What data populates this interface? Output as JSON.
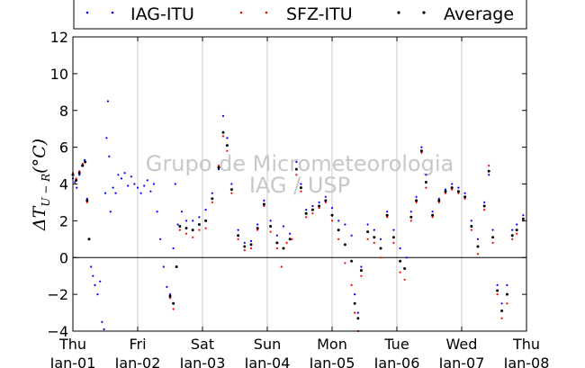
{
  "chart_data": {
    "type": "scatter",
    "title": "",
    "xlabel": "",
    "ylabel": "ΔT_{U-R}(°C)",
    "ylim": [
      -4,
      12
    ],
    "yticks": [
      -4,
      -2,
      0,
      2,
      4,
      6,
      8,
      10,
      12
    ],
    "xlim": [
      0,
      7
    ],
    "xticks": [
      {
        "day": "Thu",
        "date": "Jan-01"
      },
      {
        "day": "Fri",
        "date": "Jan-02"
      },
      {
        "day": "Sat",
        "date": "Jan-03"
      },
      {
        "day": "Sun",
        "date": "Jan-04"
      },
      {
        "day": "Mon",
        "date": "Jan-05"
      },
      {
        "day": "Tue",
        "date": "Jan-06"
      },
      {
        "day": "Wed",
        "date": "Jan-07"
      },
      {
        "day": "Thu",
        "date": "Jan-08"
      }
    ],
    "grid": "vertical",
    "zero_line": true,
    "legend_position": "top",
    "watermark": [
      "Grupo de Micrometeorologia",
      "IAG / USP"
    ],
    "series": [
      {
        "name": "IAG-ITU",
        "color": "#0000ff",
        "points": [
          [
            0.0,
            4.3
          ],
          [
            0.03,
            4.1
          ],
          [
            0.06,
            3.8
          ],
          [
            0.1,
            4.5
          ],
          [
            0.14,
            5.0
          ],
          [
            0.18,
            5.3
          ],
          [
            0.22,
            3.2
          ],
          [
            0.25,
            1.0
          ],
          [
            0.28,
            -0.5
          ],
          [
            0.31,
            -1.0
          ],
          [
            0.34,
            -1.5
          ],
          [
            0.38,
            -2.0
          ],
          [
            0.42,
            -1.3
          ],
          [
            0.45,
            -3.5
          ],
          [
            0.48,
            -3.9
          ],
          [
            0.5,
            3.5
          ],
          [
            0.52,
            6.5
          ],
          [
            0.54,
            8.5
          ],
          [
            0.56,
            5.5
          ],
          [
            0.58,
            2.5
          ],
          [
            0.62,
            3.8
          ],
          [
            0.66,
            3.5
          ],
          [
            0.7,
            4.5
          ],
          [
            0.75,
            4.3
          ],
          [
            0.8,
            4.6
          ],
          [
            0.85,
            3.9
          ],
          [
            0.9,
            4.4
          ],
          [
            0.95,
            4.0
          ],
          [
            1.0,
            3.8
          ],
          [
            1.05,
            3.5
          ],
          [
            1.1,
            3.9
          ],
          [
            1.15,
            4.2
          ],
          [
            1.2,
            3.6
          ],
          [
            1.25,
            4.0
          ],
          [
            1.3,
            2.5
          ],
          [
            1.35,
            1.0
          ],
          [
            1.4,
            -0.5
          ],
          [
            1.45,
            -1.6
          ],
          [
            1.5,
            -2.0
          ],
          [
            1.55,
            0.5
          ],
          [
            1.58,
            4.0
          ],
          [
            1.62,
            1.8
          ],
          [
            1.68,
            2.5
          ],
          [
            1.75,
            2.0
          ],
          [
            1.85,
            2.0
          ],
          [
            1.95,
            2.2
          ],
          [
            2.05,
            2.6
          ],
          [
            2.15,
            3.5
          ],
          [
            2.25,
            4.8
          ],
          [
            2.32,
            7.7
          ],
          [
            2.38,
            6.5
          ],
          [
            2.45,
            4.0
          ],
          [
            2.55,
            1.5
          ],
          [
            2.65,
            0.8
          ],
          [
            2.75,
            0.9
          ],
          [
            2.85,
            1.8
          ],
          [
            2.95,
            3.1
          ],
          [
            3.05,
            2.0
          ],
          [
            3.15,
            1.2
          ],
          [
            3.25,
            1.7
          ],
          [
            3.35,
            1.3
          ],
          [
            3.45,
            5.2
          ],
          [
            3.52,
            4.0
          ],
          [
            3.6,
            2.6
          ],
          [
            3.7,
            2.8
          ],
          [
            3.8,
            3.0
          ],
          [
            3.9,
            3.3
          ],
          [
            4.0,
            2.7
          ],
          [
            4.1,
            2.0
          ],
          [
            4.2,
            1.8
          ],
          [
            4.3,
            1.2
          ],
          [
            4.35,
            -2.0
          ],
          [
            4.4,
            -3.0
          ],
          [
            4.45,
            -0.5
          ],
          [
            4.55,
            1.8
          ],
          [
            4.65,
            1.5
          ],
          [
            4.75,
            1.0
          ],
          [
            4.85,
            2.5
          ],
          [
            4.95,
            1.5
          ],
          [
            5.05,
            0.5
          ],
          [
            5.15,
            0.0
          ],
          [
            5.22,
            2.5
          ],
          [
            5.3,
            3.3
          ],
          [
            5.38,
            6.0
          ],
          [
            5.45,
            4.5
          ],
          [
            5.55,
            2.5
          ],
          [
            5.65,
            3.2
          ],
          [
            5.75,
            3.7
          ],
          [
            5.85,
            4.0
          ],
          [
            5.95,
            3.8
          ],
          [
            6.05,
            3.5
          ],
          [
            6.15,
            2.0
          ],
          [
            6.25,
            1.0
          ],
          [
            6.35,
            3.0
          ],
          [
            6.42,
            4.5
          ],
          [
            6.48,
            1.5
          ],
          [
            6.55,
            -1.5
          ],
          [
            6.62,
            -2.5
          ],
          [
            6.7,
            -1.5
          ],
          [
            6.78,
            1.5
          ],
          [
            6.85,
            1.8
          ],
          [
            6.95,
            2.3
          ]
        ]
      },
      {
        "name": "SFZ-ITU",
        "color": "#ff0000",
        "points": [
          [
            0.0,
            4.6
          ],
          [
            0.05,
            4.3
          ],
          [
            0.1,
            4.7
          ],
          [
            0.15,
            5.1
          ],
          [
            0.19,
            5.2
          ],
          [
            0.22,
            3.0
          ],
          [
            0.25,
            1.0
          ],
          [
            1.5,
            -2.2
          ],
          [
            1.55,
            -2.8
          ],
          [
            1.6,
            -0.5
          ],
          [
            1.65,
            1.5
          ],
          [
            1.75,
            1.3
          ],
          [
            1.85,
            1.1
          ],
          [
            1.95,
            1.5
          ],
          [
            2.05,
            1.6
          ],
          [
            2.15,
            3.0
          ],
          [
            2.25,
            5.0
          ],
          [
            2.32,
            6.6
          ],
          [
            2.38,
            5.8
          ],
          [
            2.45,
            3.5
          ],
          [
            2.55,
            1.0
          ],
          [
            2.65,
            0.4
          ],
          [
            2.75,
            0.5
          ],
          [
            2.85,
            1.5
          ],
          [
            2.95,
            2.8
          ],
          [
            3.05,
            1.4
          ],
          [
            3.15,
            0.5
          ],
          [
            3.22,
            -0.5
          ],
          [
            3.3,
            0.8
          ],
          [
            3.38,
            1.0
          ],
          [
            3.45,
            4.5
          ],
          [
            3.52,
            3.6
          ],
          [
            3.6,
            2.2
          ],
          [
            3.7,
            2.4
          ],
          [
            3.8,
            2.7
          ],
          [
            3.9,
            3.0
          ],
          [
            4.0,
            2.0
          ],
          [
            4.1,
            1.0
          ],
          [
            4.2,
            -0.3
          ],
          [
            4.3,
            -1.5
          ],
          [
            4.35,
            -3.0
          ],
          [
            4.4,
            -4.0
          ],
          [
            4.45,
            -1.0
          ],
          [
            4.55,
            1.0
          ],
          [
            4.65,
            0.8
          ],
          [
            4.75,
            0.0
          ],
          [
            4.85,
            2.2
          ],
          [
            4.95,
            0.8
          ],
          [
            5.05,
            -0.8
          ],
          [
            5.12,
            -1.2
          ],
          [
            5.22,
            2.0
          ],
          [
            5.3,
            3.0
          ],
          [
            5.38,
            5.7
          ],
          [
            5.45,
            3.8
          ],
          [
            5.55,
            2.2
          ],
          [
            5.65,
            3.0
          ],
          [
            5.75,
            3.5
          ],
          [
            5.85,
            3.7
          ],
          [
            5.95,
            3.5
          ],
          [
            6.05,
            3.2
          ],
          [
            6.15,
            1.5
          ],
          [
            6.25,
            0.2
          ],
          [
            6.35,
            2.6
          ],
          [
            6.42,
            5.0
          ],
          [
            6.48,
            0.8
          ],
          [
            6.55,
            -2.0
          ],
          [
            6.62,
            -3.3
          ],
          [
            6.7,
            -2.5
          ],
          [
            6.78,
            1.0
          ],
          [
            6.85,
            1.3
          ],
          [
            6.95,
            2.0
          ]
        ]
      },
      {
        "name": "Average",
        "color": "#000000",
        "points": [
          [
            0.0,
            4.5
          ],
          [
            0.05,
            4.2
          ],
          [
            0.1,
            4.6
          ],
          [
            0.15,
            5.0
          ],
          [
            0.19,
            5.2
          ],
          [
            0.22,
            3.1
          ],
          [
            0.25,
            1.0
          ],
          [
            1.5,
            -2.1
          ],
          [
            1.55,
            -2.5
          ],
          [
            1.6,
            -0.5
          ],
          [
            1.65,
            1.7
          ],
          [
            1.75,
            1.6
          ],
          [
            1.85,
            1.5
          ],
          [
            1.95,
            1.8
          ],
          [
            2.05,
            2.0
          ],
          [
            2.15,
            3.2
          ],
          [
            2.25,
            4.9
          ],
          [
            2.32,
            6.8
          ],
          [
            2.38,
            6.1
          ],
          [
            2.45,
            3.7
          ],
          [
            2.55,
            1.2
          ],
          [
            2.65,
            0.6
          ],
          [
            2.75,
            0.7
          ],
          [
            2.85,
            1.6
          ],
          [
            2.95,
            2.9
          ],
          [
            3.05,
            1.7
          ],
          [
            3.15,
            0.8
          ],
          [
            3.25,
            0.5
          ],
          [
            3.35,
            1.0
          ],
          [
            3.45,
            4.8
          ],
          [
            3.52,
            3.8
          ],
          [
            3.6,
            2.4
          ],
          [
            3.7,
            2.6
          ],
          [
            3.8,
            2.8
          ],
          [
            3.9,
            3.1
          ],
          [
            4.0,
            2.3
          ],
          [
            4.1,
            1.5
          ],
          [
            4.2,
            0.7
          ],
          [
            4.3,
            -0.2
          ],
          [
            4.35,
            -2.5
          ],
          [
            4.4,
            -3.3
          ],
          [
            4.45,
            -0.7
          ],
          [
            4.55,
            1.4
          ],
          [
            4.65,
            1.1
          ],
          [
            4.75,
            0.5
          ],
          [
            4.85,
            2.3
          ],
          [
            4.95,
            1.1
          ],
          [
            5.05,
            -0.2
          ],
          [
            5.12,
            -0.6
          ],
          [
            5.22,
            2.2
          ],
          [
            5.3,
            3.1
          ],
          [
            5.38,
            5.8
          ],
          [
            5.45,
            4.1
          ],
          [
            5.55,
            2.3
          ],
          [
            5.65,
            3.1
          ],
          [
            5.75,
            3.6
          ],
          [
            5.85,
            3.8
          ],
          [
            5.95,
            3.6
          ],
          [
            6.05,
            3.3
          ],
          [
            6.15,
            1.7
          ],
          [
            6.25,
            0.6
          ],
          [
            6.35,
            2.8
          ],
          [
            6.42,
            4.7
          ],
          [
            6.48,
            1.1
          ],
          [
            6.55,
            -1.8
          ],
          [
            6.62,
            -2.9
          ],
          [
            6.7,
            -2.0
          ],
          [
            6.78,
            1.2
          ],
          [
            6.85,
            1.5
          ],
          [
            6.95,
            2.1
          ]
        ]
      }
    ]
  }
}
